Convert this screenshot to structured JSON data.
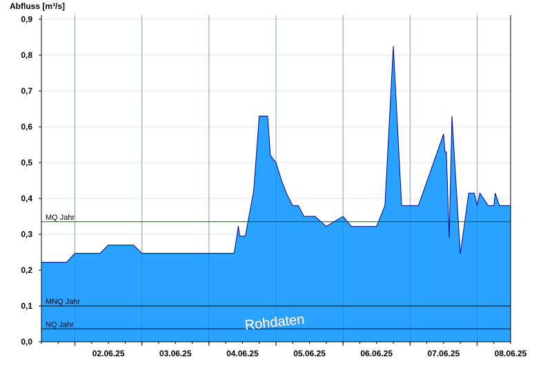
{
  "chart_data": {
    "type": "area",
    "ylabel": "Abfluss [m³/s]",
    "ylim": [
      0,
      0.92
    ],
    "yticks": [
      "0,0",
      "0,1",
      "0,2",
      "0,3",
      "0,4",
      "0,5",
      "0,6",
      "0,7",
      "0,8",
      "0,9"
    ],
    "xlim": [
      "01.06.25 12:00",
      "08.06.25 12:00"
    ],
    "xticks": [
      "02.06.25",
      "03.06.25",
      "04.06.25",
      "05.06.25",
      "06.06.25",
      "07.06.25",
      "08.06.25"
    ],
    "grid": true,
    "fill_color": "#29a3ff",
    "line_color": "#00008b",
    "reference_lines": [
      {
        "name": "MQ Jahr",
        "value": 0.335,
        "color": "#006400"
      },
      {
        "name": "MNQ Jahr",
        "value": 0.1,
        "color": "#000000"
      },
      {
        "name": "NQ Jahr",
        "value": 0.036,
        "color": "#000000"
      }
    ],
    "annotation": "Rohdaten",
    "series": [
      {
        "x": [
          "01.06.25 12:00",
          "01.06.25 21:00",
          "02.06.25 00:00",
          "02.06.25 09:00",
          "02.06.25 12:00",
          "02.06.25 21:00",
          "03.06.25 00:00",
          "04.06.25 09:00",
          "04.06.25 10:00",
          "04.06.25 10:30",
          "04.06.25 11:00",
          "04.06.25 13:00",
          "04.06.25 16:00",
          "04.06.25 18:00",
          "04.06.25 21:00",
          "04.06.25 22:00",
          "05.06.25 00:00",
          "05.06.25 02:00",
          "05.06.25 04:00",
          "05.06.25 06:00",
          "05.06.25 08:00",
          "05.06.25 10:00",
          "05.06.25 12:00",
          "05.06.25 14:00",
          "05.06.25 18:00",
          "06.06.25 00:00",
          "06.06.25 03:00",
          "06.06.25 12:00",
          "06.06.25 15:00",
          "06.06.25 18:00",
          "06.06.25 21:00",
          "07.06.25 03:00",
          "07.06.25 12:00",
          "07.06.25 12:30",
          "07.06.25 13:00",
          "07.06.25 14:00",
          "07.06.25 15:00",
          "07.06.25 18:00",
          "07.06.25 21:00",
          "07.06.25 23:00",
          "08.06.25 00:00",
          "08.06.25 01:00",
          "08.06.25 04:00",
          "08.06.25 06:00",
          "08.06.25 06:30",
          "08.06.25 08:00",
          "08.06.25 09:00",
          "08.06.25 10:00",
          "08.06.25 12:00"
        ],
        "y": [
          0.222,
          0.222,
          0.247,
          0.247,
          0.27,
          0.27,
          0.247,
          0.247,
          0.295,
          0.323,
          0.295,
          0.295,
          0.42,
          0.63,
          0.63,
          0.52,
          0.5,
          0.45,
          0.41,
          0.38,
          0.38,
          0.35,
          0.35,
          0.35,
          0.322,
          0.35,
          0.322,
          0.322,
          0.38,
          0.825,
          0.38,
          0.38,
          0.58,
          0.53,
          0.53,
          0.29,
          0.63,
          0.245,
          0.415,
          0.415,
          0.38,
          0.415,
          0.38,
          0.38,
          0.415,
          0.38,
          0.38,
          0.38,
          0.38
        ]
      }
    ]
  }
}
